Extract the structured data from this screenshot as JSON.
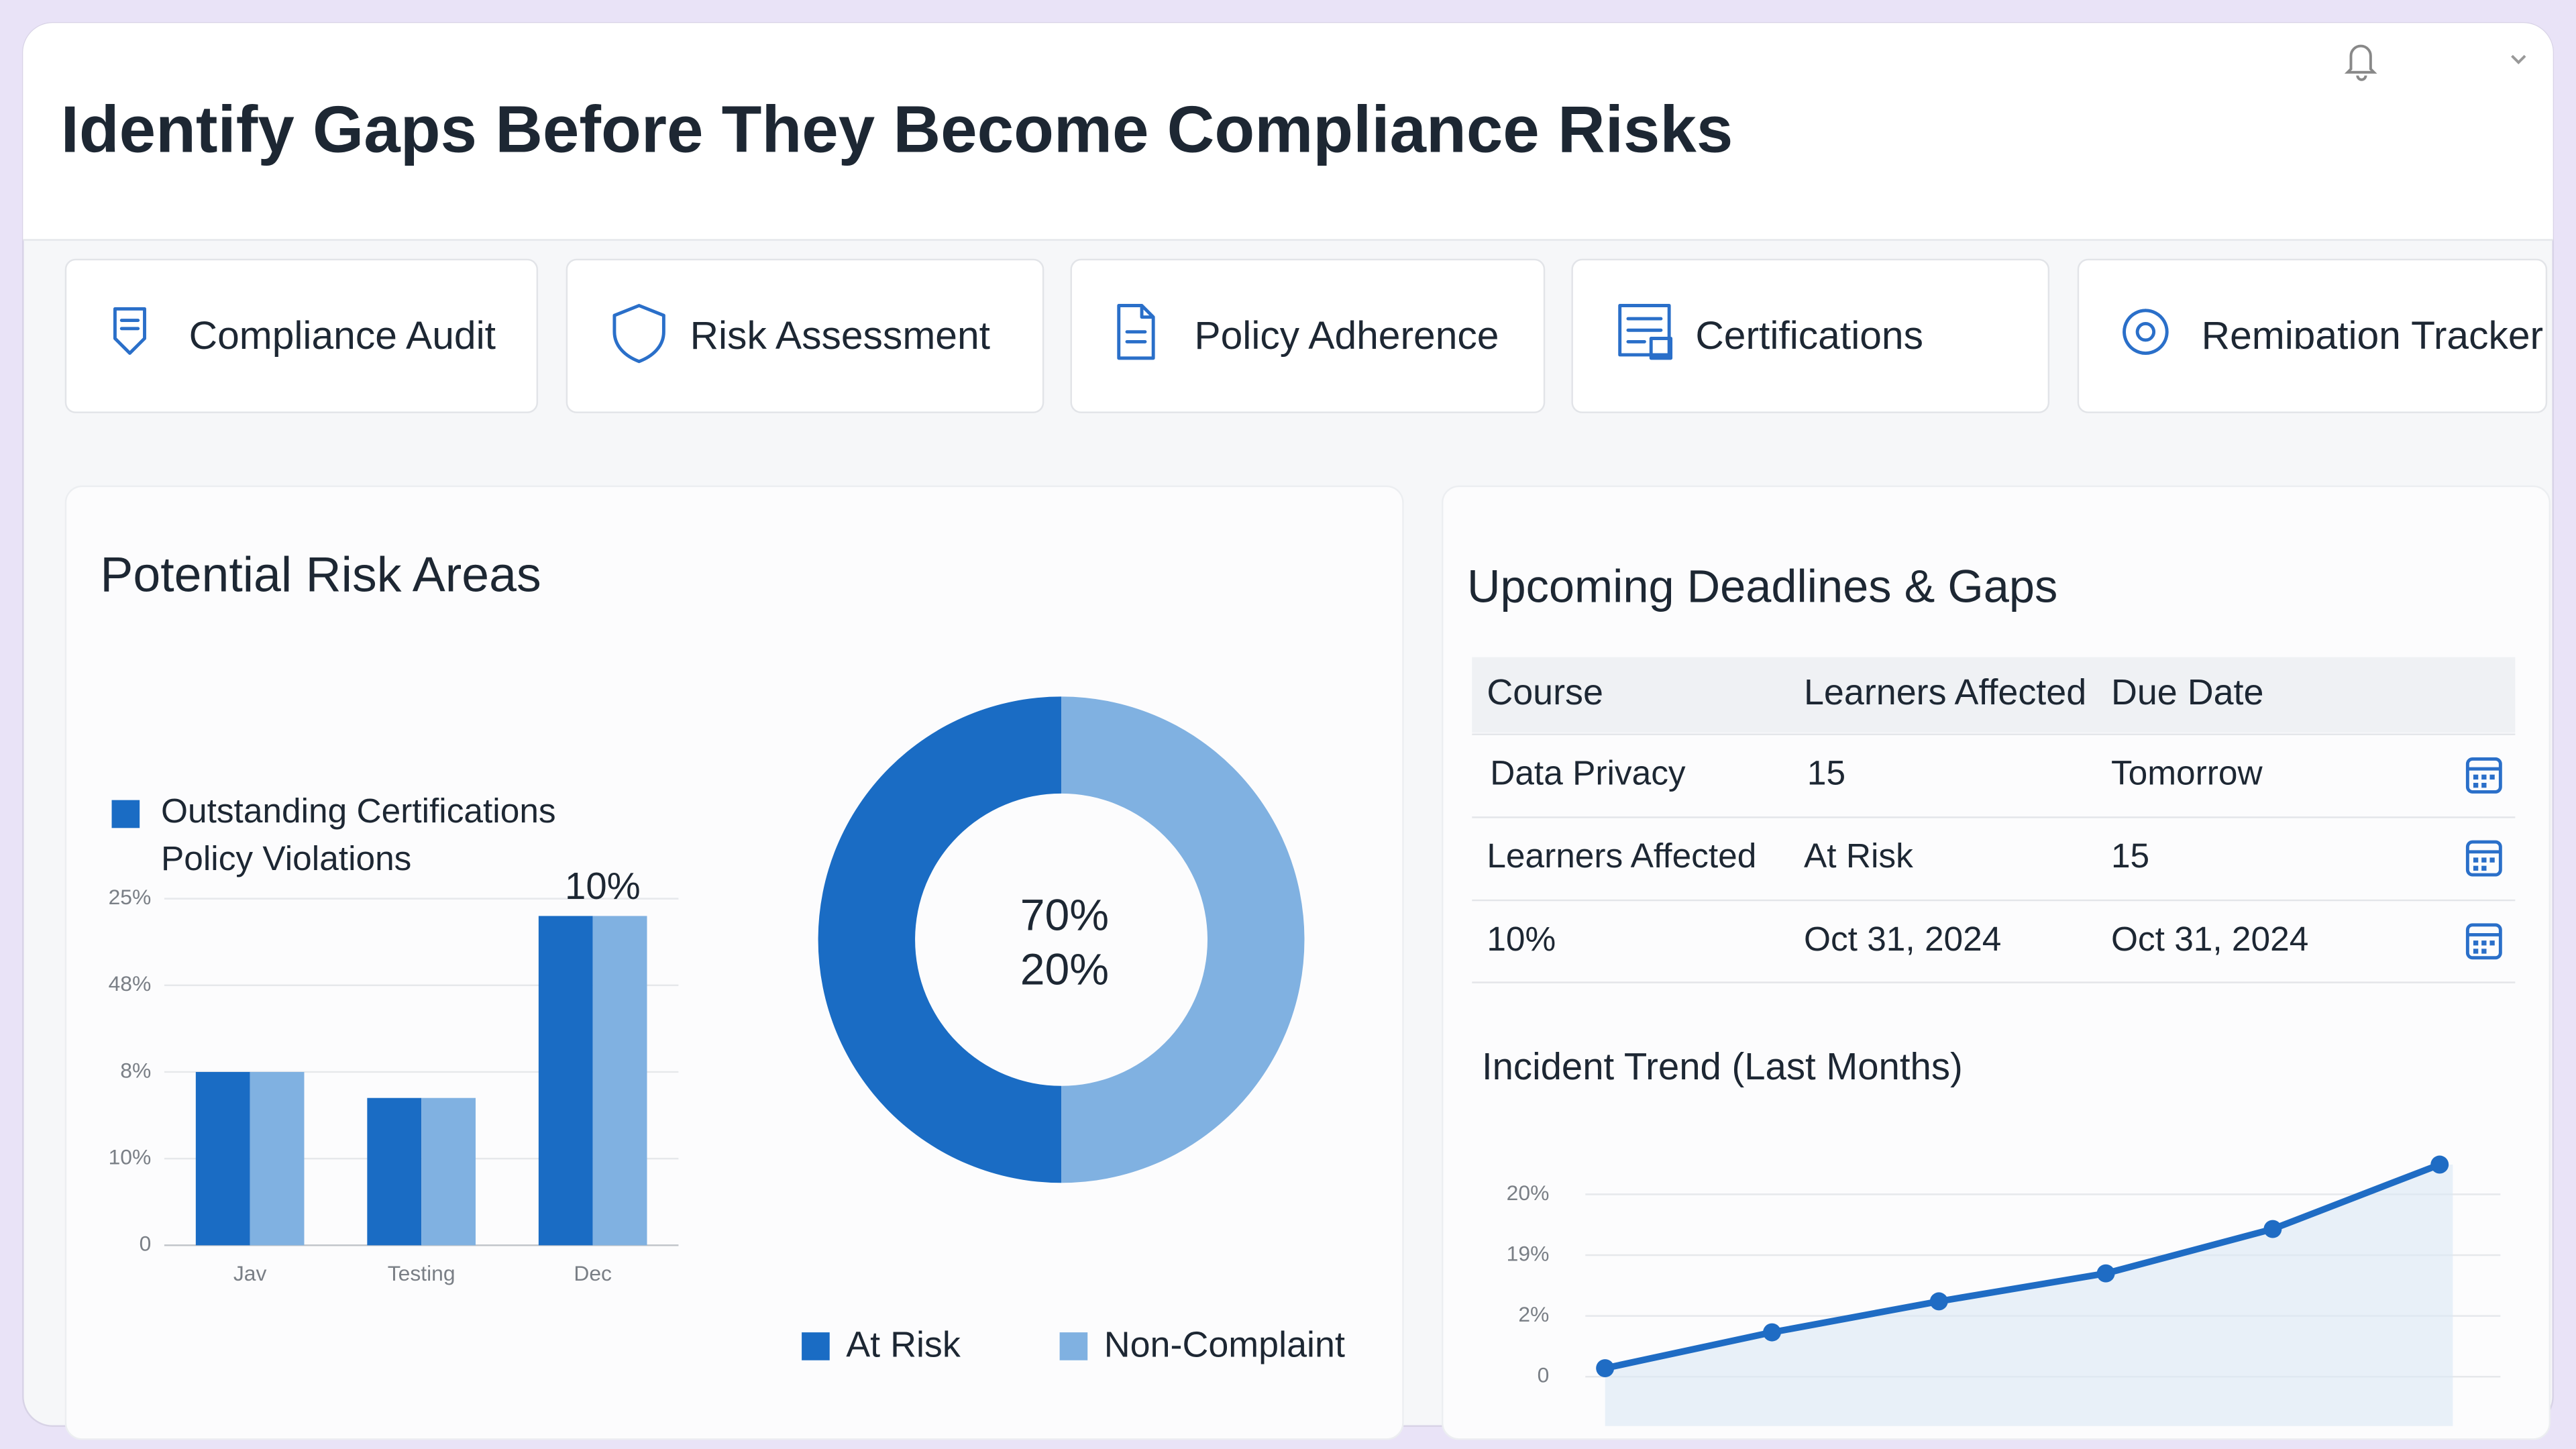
{
  "header": {
    "title": "Identify Gaps Before They Become Compliance Risks"
  },
  "tabs": [
    "Compliance Audit",
    "Risk Assessment",
    "Policy Adherence",
    "Certifications",
    "Remiɒation Tracker"
  ],
  "risk_panel": {
    "title": "Potential Risk Areas",
    "bar_chart": {
      "type": "bar",
      "categories": [
        "Jav",
        "Testing",
        "Dec"
      ],
      "series": [
        {
          "name": "Outstanding Certifications",
          "color": "#1a6cc4",
          "values": [
            2.0,
            1.7,
            3.8
          ]
        },
        {
          "name": "Policy Violations",
          "color": "#80b1e1",
          "values": [
            2.0,
            1.7,
            3.8
          ]
        }
      ],
      "ylim": [
        0,
        4
      ],
      "yticks": [
        {
          "value": 0,
          "label": "0"
        },
        {
          "value": 1,
          "label": "10%"
        },
        {
          "value": 2,
          "label": "8%"
        },
        {
          "value": 3,
          "label": "48%"
        },
        {
          "value": 4,
          "label": "25%"
        }
      ],
      "grid": true,
      "annotations": [
        "10%"
      ]
    },
    "donut": {
      "type": "donut",
      "categories": [
        "At Risk",
        "Non-Complaint"
      ],
      "colors": [
        "#1a6cc4",
        "#80b1e1"
      ],
      "values": [
        50,
        50
      ],
      "center_labels": [
        "70%",
        "20%"
      ]
    }
  },
  "deadlines": {
    "title": "Upcoming Deadlines & Gaps",
    "table": {
      "header": [
        "Course",
        "Learners Affected",
        "Due Date"
      ],
      "rows": [
        [
          "Data Privacy",
          "15",
          "Tomorrow"
        ],
        [
          "Learners Affected",
          "At Risk",
          "15"
        ],
        [
          "10%",
          "Oct 31, 2024",
          "Oct 31, 2024"
        ]
      ]
    }
  },
  "trend": {
    "title": "Incident Trend (Last Months)",
    "chart": {
      "type": "line",
      "categories": [
        null,
        null,
        null,
        null,
        null,
        null
      ],
      "values": [
        0.14,
        0.73,
        1.24,
        1.7,
        2.43,
        3.49
      ],
      "color": "#1f6cc4",
      "ylim": [
        0,
        3.5
      ],
      "yticks": [
        {
          "value": 0,
          "label": "0"
        },
        {
          "value": 1,
          "label": "2%"
        },
        {
          "value": 2,
          "label": "19%"
        },
        {
          "value": 3,
          "label": "20%"
        }
      ],
      "grid": true
    }
  }
}
